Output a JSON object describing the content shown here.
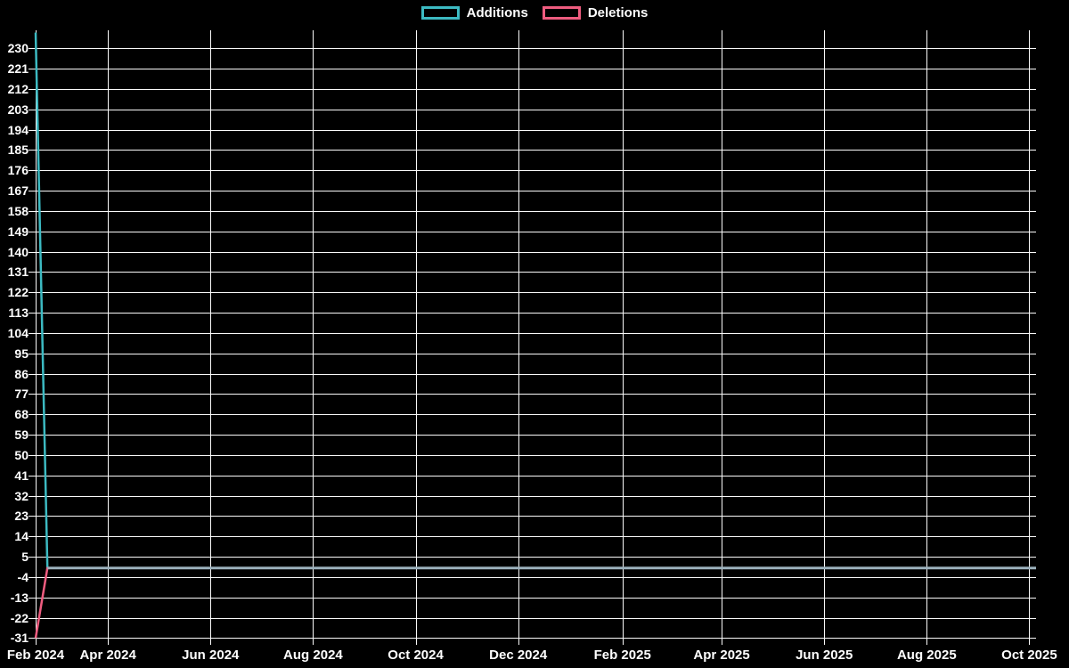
{
  "legend": {
    "items": [
      {
        "label": "Additions",
        "color": "#3cbac2"
      },
      {
        "label": "Deletions",
        "color": "#ee5c7f"
      }
    ]
  },
  "chart_data": {
    "type": "line",
    "title": "",
    "xlabel": "",
    "ylabel": "",
    "background_color": "#000000",
    "grid": true,
    "grid_color": "#fafafa",
    "text_color": "#ffffff",
    "legend_position": "top-center",
    "overlap_line_color": "#9bb0bc",
    "ylim": [
      -31,
      238
    ],
    "y_tick_step": 9,
    "y_tick_labels": [
      230,
      221,
      212,
      203,
      194,
      185,
      176,
      167,
      158,
      149,
      140,
      131,
      122,
      113,
      104,
      95,
      86,
      77,
      68,
      59,
      50,
      41,
      32,
      23,
      14,
      5,
      -4,
      -13,
      -22,
      -31
    ],
    "xlim_days": 595,
    "x_ticks": [
      {
        "label": "Feb 2024",
        "day": 0
      },
      {
        "label": "Apr 2024",
        "day": 43
      },
      {
        "label": "Jun 2024",
        "day": 104
      },
      {
        "label": "Aug 2024",
        "day": 165
      },
      {
        "label": "Oct 2024",
        "day": 226
      },
      {
        "label": "Dec 2024",
        "day": 287
      },
      {
        "label": "Feb 2025",
        "day": 349
      },
      {
        "label": "Apr 2025",
        "day": 408
      },
      {
        "label": "Jun 2025",
        "day": 469
      },
      {
        "label": "Aug 2025",
        "day": 530
      },
      {
        "label": "Oct 2025",
        "day": 591
      }
    ],
    "series": [
      {
        "name": "Additions",
        "color": "#3cbac2",
        "points": [
          {
            "day": 0,
            "value": 237
          },
          {
            "day": 7,
            "value": 0
          },
          {
            "day": 595,
            "value": 0
          }
        ]
      },
      {
        "name": "Deletions",
        "color": "#ee5c7f",
        "points": [
          {
            "day": 0,
            "value": -31
          },
          {
            "day": 7,
            "value": 0
          },
          {
            "day": 595,
            "value": 0
          }
        ]
      }
    ],
    "overlap_segment": {
      "from_day": 7,
      "to_day": 595,
      "value": 0
    }
  }
}
